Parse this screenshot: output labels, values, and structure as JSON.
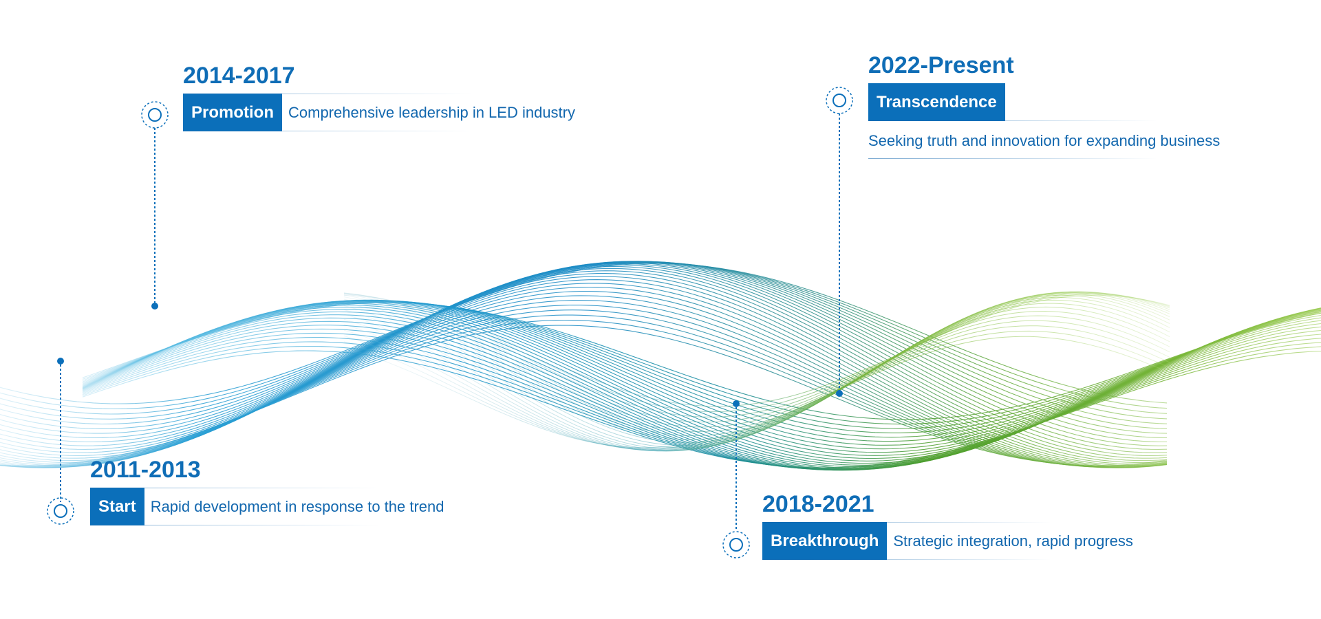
{
  "colors": {
    "accent": "#0b6fba",
    "text": "#1267ae",
    "wave_blue": "#1f8bc9",
    "wave_green": "#7cb82f"
  },
  "milestones": [
    {
      "period": "2011-2013",
      "stage": "Start",
      "description": "Rapid development in response to the trend"
    },
    {
      "period": "2014-2017",
      "stage": "Promotion",
      "description": "Comprehensive leadership in LED industry"
    },
    {
      "period": "2018-2021",
      "stage": "Breakthrough",
      "description": "Strategic integration, rapid progress"
    },
    {
      "period": "2022-Present",
      "stage": "Transcendence",
      "description": "Seeking truth and innovation for expanding business"
    }
  ]
}
